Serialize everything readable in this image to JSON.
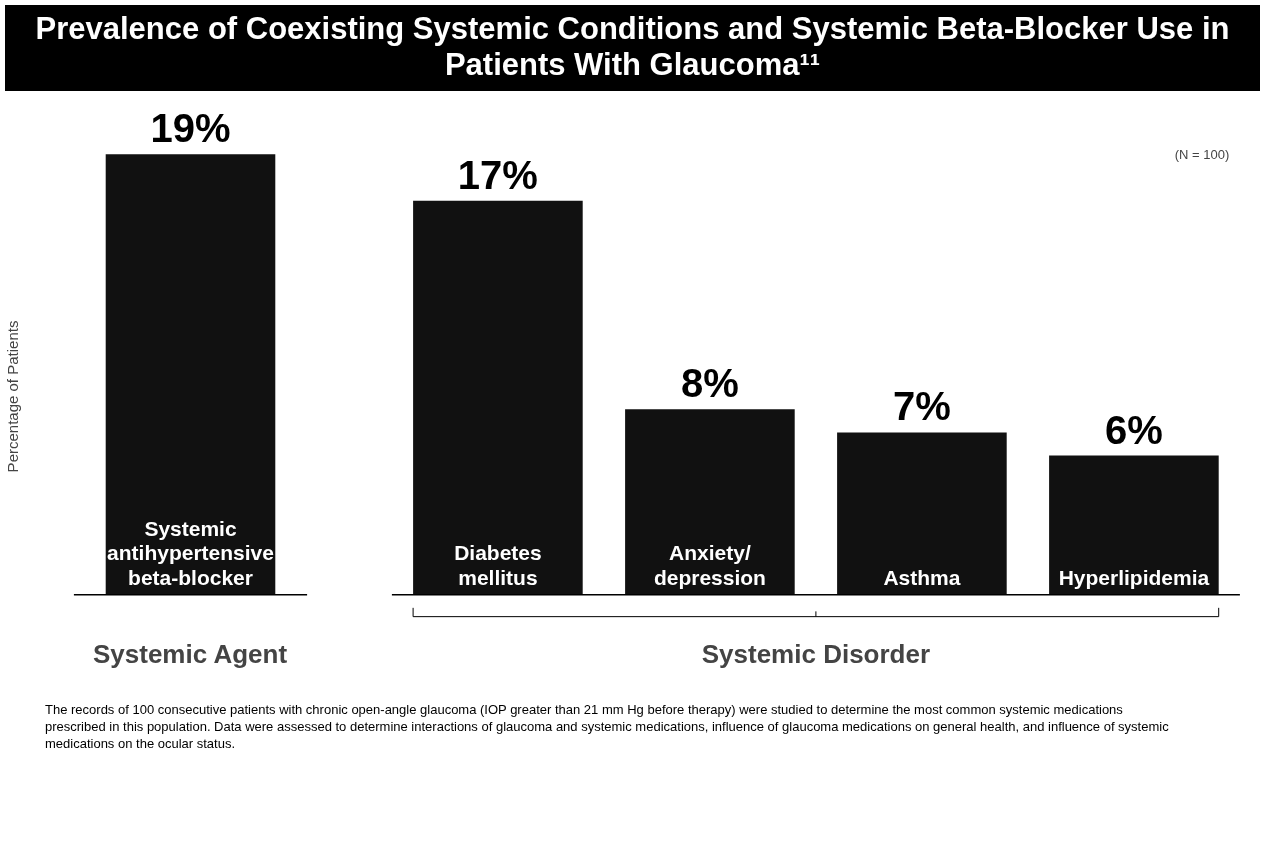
{
  "chart_data": {
    "type": "bar",
    "title": "Prevalence of Coexisting Systemic Conditions and Systemic Beta-Blocker Use in Patients With Glaucoma¹¹",
    "ylabel": "Percentage of Patients",
    "categories": [
      "Systemic\nantihypertensive\nbeta-blocker",
      "Diabetes\nmellitus",
      "Anxiety/\ndepression",
      "Asthma",
      "Hyperlipidemia"
    ],
    "values": [
      19,
      17,
      8,
      7,
      6
    ],
    "value_labels": [
      "19%",
      "17%",
      "8%",
      "7%",
      "6%"
    ],
    "color": "#111111",
    "annotations": [
      "Systemic Agent",
      "Systemic Disorder",
      "(N = 100)",
      "The records of 100 consecutive patients with chronic open-angle glaucoma (IOP greater than 21 mm Hg before therapy) were studied to determine the most common systemic medications prescribed in this population. Data were assessed to determine interactions of glaucoma and systemic medications, influence of glaucoma medications on general health, and influence of systemic medications on the ocular status."
    ]
  }
}
